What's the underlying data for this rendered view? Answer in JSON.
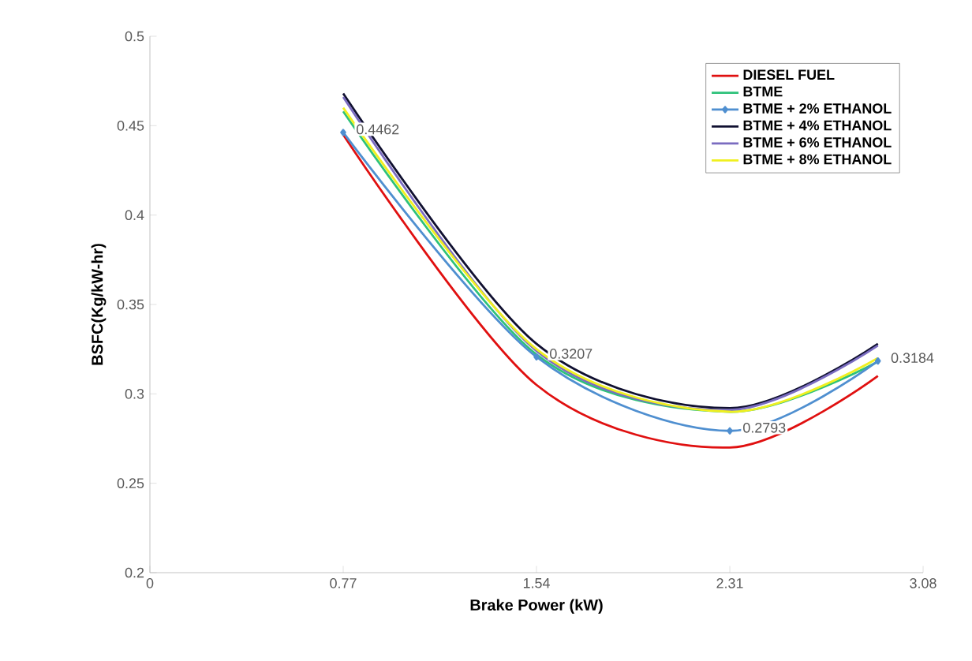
{
  "chart_data": {
    "type": "line",
    "xlabel": "Brake Power (kW)",
    "ylabel": "BSFC(Kg/kW-hr)",
    "x": [
      0.77,
      1.54,
      2.31,
      2.9
    ],
    "series": [
      {
        "name": "DIESEL FUEL",
        "color": "#e01010",
        "values": [
          0.445,
          0.305,
          0.27,
          0.31
        ]
      },
      {
        "name": "BTME",
        "color": "#2ec27a",
        "values": [
          0.458,
          0.322,
          0.29,
          0.318
        ]
      },
      {
        "name": "BTME + 2% ETHANOL",
        "color": "#4f8fd0",
        "marker": "diamond",
        "values": [
          0.4462,
          0.3207,
          0.2793,
          0.3184
        ],
        "value_labels": [
          "0.4462",
          "0.3207",
          "0.2793",
          "0.3184"
        ]
      },
      {
        "name": "BTME + 4% ETHANOL",
        "color": "#101030",
        "values": [
          0.468,
          0.328,
          0.292,
          0.328
        ]
      },
      {
        "name": "BTME + 6% ETHANOL",
        "color": "#7a6cc0",
        "values": [
          0.466,
          0.324,
          0.291,
          0.327
        ]
      },
      {
        "name": "BTME + 8% ETHANOL",
        "color": "#f0f020",
        "values": [
          0.46,
          0.325,
          0.29,
          0.32
        ]
      }
    ],
    "xlim": [
      0,
      3.08
    ],
    "xticks": [
      0,
      0.77,
      1.54,
      2.31,
      3.08
    ],
    "ylim": [
      0.2,
      0.5
    ],
    "yticks": [
      0.2,
      0.25,
      0.3,
      0.35,
      0.4,
      0.45,
      0.5
    ],
    "grid": false,
    "legend": "top right",
    "line_style": "solid"
  }
}
